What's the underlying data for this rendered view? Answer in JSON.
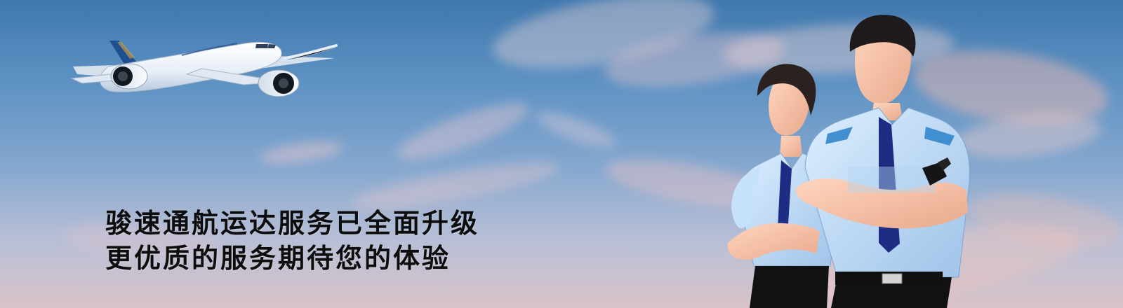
{
  "banner": {
    "headline_line_1": "骏速通航运达服务已全面升级",
    "headline_line_2": "更优质的服务期待您的体验"
  },
  "visuals": {
    "sky_top": "#3f78ad",
    "sky_bottom": "#d9c3c8",
    "cloud_pink": "#f1c8c9",
    "uniform_blue": "#bfdcf7",
    "tie_navy": "#1f2c84",
    "plane_icon": "airplane-icon",
    "staff_image": "airline-staff-image"
  }
}
